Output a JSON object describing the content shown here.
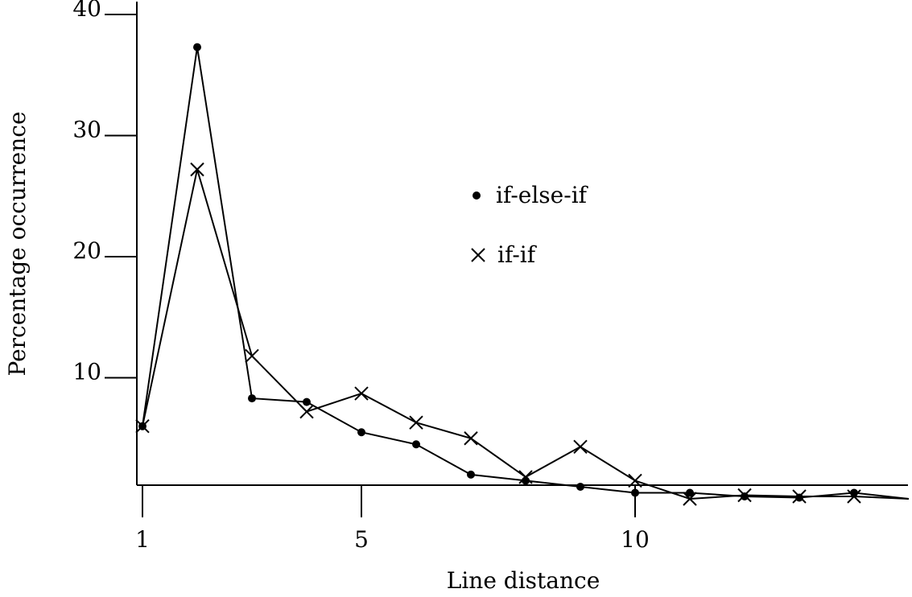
{
  "chart_data": {
    "type": "line",
    "xlabel": "Line distance",
    "ylabel": "Percentage occurrence",
    "xlim": [
      1,
      15
    ],
    "ylim": [
      0,
      40
    ],
    "x_ticks": [
      {
        "value": 1,
        "label": "1"
      },
      {
        "value": 5,
        "label": "5"
      },
      {
        "value": 10,
        "label": "10"
      }
    ],
    "y_ticks": [
      {
        "value": 10,
        "label": "10"
      },
      {
        "value": 20,
        "label": "20"
      },
      {
        "value": 30,
        "label": "30"
      },
      {
        "value": 40,
        "label": "40"
      }
    ],
    "legend_position": "upper-center",
    "series": [
      {
        "name": "if-else-if",
        "marker": "dot",
        "x": [
          1,
          2,
          3,
          4,
          5,
          6,
          7,
          8,
          9,
          10,
          11,
          12,
          13,
          14,
          15
        ],
        "y": [
          6.0,
          37.3,
          8.3,
          8.0,
          5.5,
          4.5,
          2.0,
          1.5,
          1.0,
          0.5,
          0.5,
          0.2,
          0.1,
          0.5,
          0.0
        ]
      },
      {
        "name": "if-if",
        "marker": "cross",
        "x": [
          1,
          2,
          3,
          4,
          5,
          6,
          7,
          8,
          9,
          10,
          11,
          12,
          13,
          14,
          15
        ],
        "y": [
          6.0,
          27.2,
          11.8,
          7.2,
          8.7,
          6.3,
          5.0,
          1.8,
          4.3,
          1.5,
          0.0,
          0.3,
          0.2,
          0.2,
          0.0
        ]
      }
    ]
  }
}
